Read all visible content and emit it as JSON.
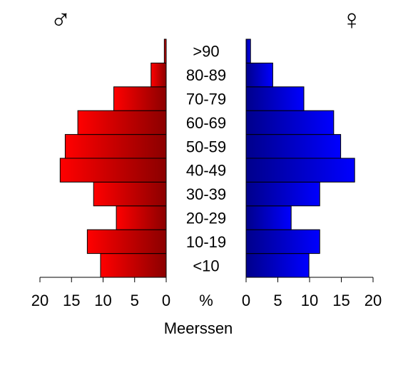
{
  "chart_data": {
    "type": "bar",
    "orientation": "horizontal",
    "layout": "population-pyramid",
    "title": "",
    "xlabel": "Meerssen",
    "unit": "%",
    "xlim": [
      0,
      20
    ],
    "ticks": [
      "20",
      "15",
      "10",
      "5",
      "0",
      "0",
      "5",
      "10",
      "15",
      "20"
    ],
    "categories": [
      "<10",
      "10-19",
      "20-29",
      "30-39",
      "40-49",
      "50-59",
      "60-69",
      "70-79",
      "80-89",
      ">90"
    ],
    "series": [
      {
        "name": "♂",
        "side": "left",
        "color": "#ff0000",
        "color_dark": "#8b0000",
        "values": [
          10.4,
          12.5,
          7.9,
          11.5,
          16.8,
          16.0,
          14.0,
          8.3,
          2.4,
          0.3
        ]
      },
      {
        "name": "♀",
        "side": "right",
        "color": "#0000ff",
        "color_dark": "#00008b",
        "values": [
          9.9,
          11.6,
          7.1,
          11.6,
          17.1,
          14.9,
          13.8,
          9.1,
          4.2,
          0.7
        ]
      }
    ],
    "grid": false,
    "legend": "none"
  }
}
